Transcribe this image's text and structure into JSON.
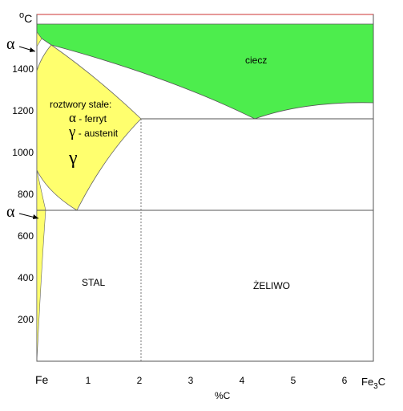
{
  "title_unit": {
    "degree": "o",
    "unit": "C"
  },
  "y_axis": {
    "ticks": [
      200,
      400,
      600,
      800,
      1000,
      1200,
      1400
    ]
  },
  "x_axis": {
    "start_label": "Fe",
    "end_label": {
      "main": "Fe",
      "sub": "3",
      "tail": "C"
    },
    "ticks": [
      1,
      2,
      3,
      4,
      5,
      6
    ],
    "title": "%C"
  },
  "side_labels": [
    "α",
    "α"
  ],
  "regions": {
    "liquid": "ciecz",
    "solid_header": "roztwory stałe:",
    "ferrite_symbol": "α",
    "ferrite": " - ferryt",
    "austenite_symbol": "γ",
    "austenite": " - austenit",
    "gamma": "γ",
    "steel": "STAL",
    "cast_iron": "ŻELIWO"
  }
}
